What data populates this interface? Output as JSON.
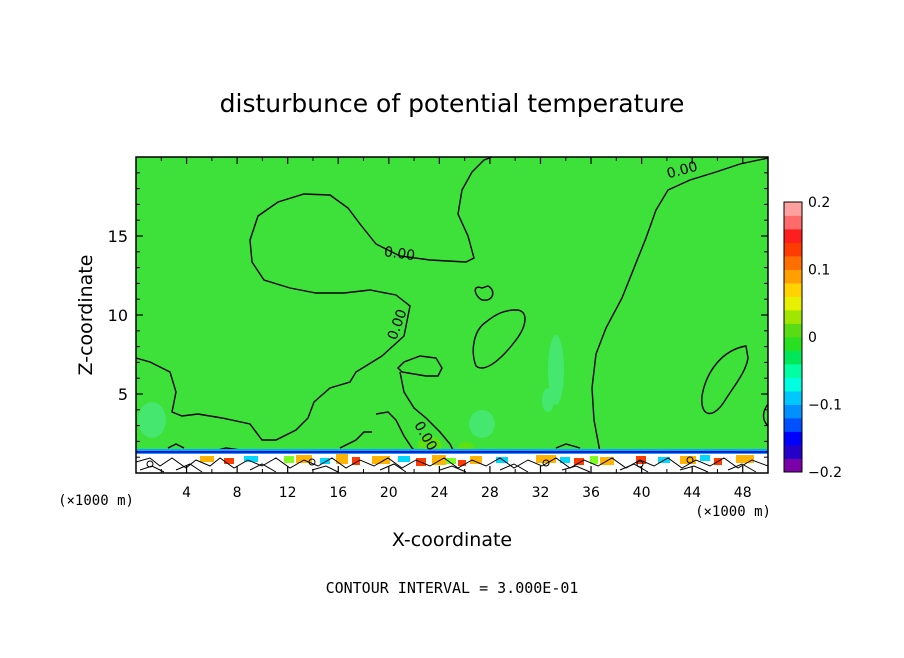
{
  "chart_data": {
    "type": "heatmap",
    "title": "disturbunce of potential temperature",
    "xlabel": "X-coordinate",
    "ylabel": "Z-coordinate",
    "x_unit_left": "(×1000 m)",
    "x_unit_right": "(×1000 m)",
    "xlim": [
      0,
      50
    ],
    "ylim": [
      0,
      20
    ],
    "x_ticks": [
      4,
      8,
      12,
      16,
      20,
      24,
      28,
      32,
      36,
      40,
      44,
      48
    ],
    "y_ticks": [
      5,
      10,
      15
    ],
    "background_value": 0,
    "contour_labels": [
      {
        "text": "0.00",
        "x": 43.3,
        "y": 18.9
      },
      {
        "text": "0.00",
        "x": 20.8,
        "y": 13.6
      },
      {
        "text": "0.00",
        "x": 21.0,
        "y": 9.3
      },
      {
        "text": "0.00",
        "x": 22.6,
        "y": 2.2
      }
    ],
    "colorbar": {
      "min": -0.2,
      "max": 0.2,
      "tick_values": [
        0.2,
        0.1,
        0,
        -0.1,
        -0.2
      ],
      "tick_labels": [
        "0.2",
        "0.1",
        "0",
        "−0.1",
        "−0.2"
      ],
      "colors": [
        "#7a00a8",
        "#2400c8",
        "#0000ff",
        "#0050ff",
        "#0090ff",
        "#00c8ff",
        "#00ffe0",
        "#00ffa0",
        "#00e85a",
        "#28e020",
        "#5adc14",
        "#a0e600",
        "#e6f000",
        "#ffd200",
        "#ffa000",
        "#ff6e00",
        "#ff3c00",
        "#ff1e1e",
        "#ff6a6a",
        "#ffa0a0"
      ]
    },
    "footer": "CONTOUR INTERVAL = 3.000E-01"
  },
  "colors": {
    "field": "#3ee03a",
    "cool": "#46e874",
    "contour": "#000000"
  }
}
